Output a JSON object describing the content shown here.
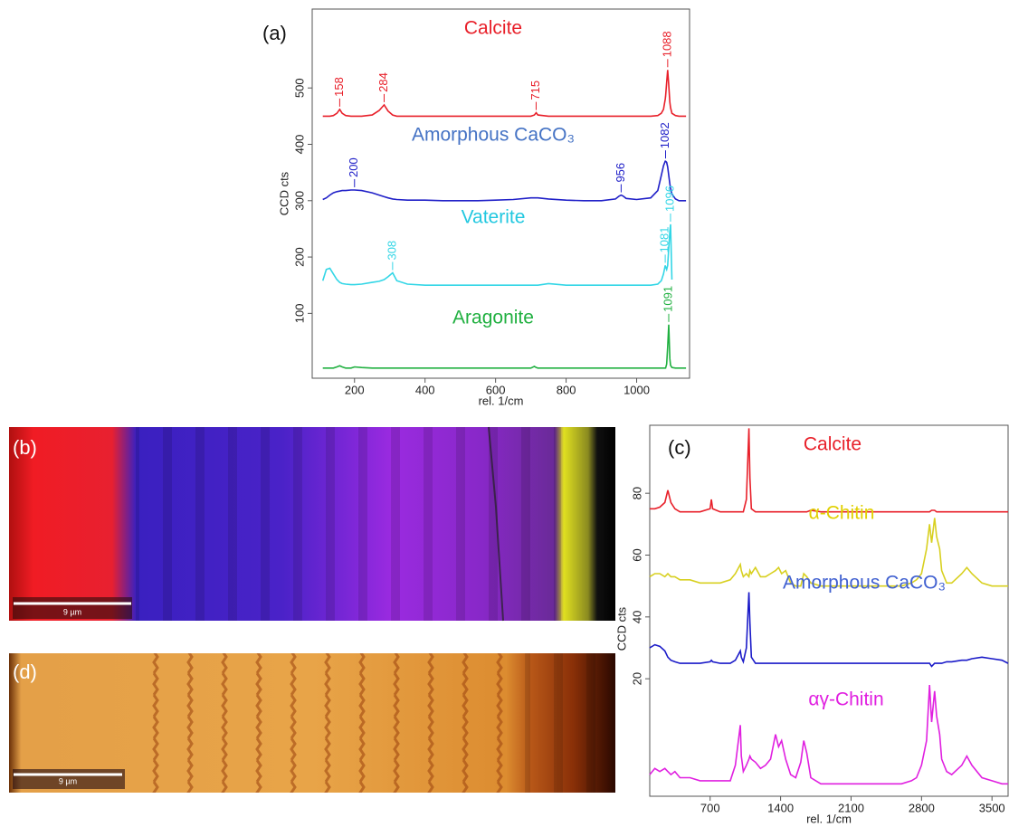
{
  "chart_data": [
    {
      "type": "line",
      "panel_label": "(a)",
      "x_label": "rel. 1/cm",
      "y_label": "CCD cts",
      "xlim": [
        80,
        1150
      ],
      "ylim": [
        -15,
        640
      ],
      "xticks": [
        200,
        400,
        600,
        800,
        1000
      ],
      "yticks": [
        100,
        200,
        300,
        400,
        500
      ],
      "x": [
        110,
        120,
        130,
        140,
        150,
        158,
        165,
        175,
        190,
        200,
        220,
        250,
        270,
        284,
        295,
        308,
        320,
        350,
        400,
        450,
        500,
        550,
        600,
        650,
        700,
        710,
        715,
        720,
        750,
        800,
        850,
        900,
        940,
        950,
        956,
        962,
        970,
        1000,
        1040,
        1060,
        1070,
        1076,
        1081,
        1082,
        1085,
        1088,
        1091,
        1094,
        1096,
        1100,
        1110,
        1120,
        1140
      ],
      "series": [
        {
          "name": "Calcite",
          "color": "#e8202a",
          "label_color": "#e8202a",
          "peaks": [
            158,
            284,
            715,
            1088
          ],
          "values": [
            450,
            450,
            450,
            451,
            455,
            462,
            455,
            451,
            450,
            450,
            450,
            452,
            460,
            470,
            459,
            452,
            450,
            450,
            450,
            450,
            450,
            450,
            450,
            450,
            450,
            452,
            456,
            452,
            450,
            450,
            450,
            450,
            450,
            450,
            450,
            450,
            450,
            450,
            450,
            451,
            455,
            462,
            480,
            485,
            510,
            532,
            505,
            475,
            465,
            455,
            451,
            450,
            450
          ]
        },
        {
          "name": "Amorphous CaCO₃",
          "color": "#2020c8",
          "label_color": "#4472c4",
          "peaks": [
            200,
            956,
            1082
          ],
          "values": [
            302,
            305,
            310,
            314,
            316,
            317,
            318,
            318,
            319,
            319,
            318,
            314,
            310,
            307,
            305,
            303,
            302,
            301,
            301,
            300,
            300,
            300,
            301,
            302,
            305,
            305,
            305,
            305,
            303,
            301,
            300,
            300,
            303,
            308,
            310,
            308,
            304,
            302,
            305,
            318,
            345,
            362,
            370,
            370,
            368,
            360,
            345,
            330,
            322,
            312,
            303,
            300,
            300
          ]
        },
        {
          "name": "Vaterite",
          "color": "#33d6e6",
          "label_color": "#22c8e0",
          "peaks": [
            308,
            1081,
            1096
          ],
          "values": [
            158,
            178,
            180,
            170,
            160,
            155,
            153,
            152,
            151,
            151,
            152,
            155,
            157,
            160,
            165,
            172,
            158,
            152,
            150,
            150,
            150,
            150,
            150,
            150,
            150,
            150,
            150,
            150,
            153,
            150,
            150,
            150,
            150,
            150,
            150,
            150,
            150,
            150,
            150,
            152,
            158,
            170,
            185,
            183,
            178,
            185,
            215,
            245,
            258,
            160,
            null,
            null,
            null
          ]
        },
        {
          "name": "Aragonite",
          "color": "#20b040",
          "label_color": "#20b040",
          "peaks": [
            1091
          ],
          "values": [
            3,
            3,
            3,
            3,
            5,
            7,
            5,
            3,
            3,
            5,
            4,
            3,
            3,
            3,
            3,
            3,
            3,
            3,
            3,
            3,
            3,
            3,
            3,
            3,
            3,
            6,
            4,
            3,
            3,
            3,
            3,
            3,
            3,
            3,
            3,
            3,
            3,
            3,
            3,
            3,
            3,
            3,
            3,
            3,
            10,
            40,
            80,
            20,
            8,
            4,
            3,
            3,
            3
          ]
        }
      ]
    },
    {
      "type": "line",
      "panel_label": "(c)",
      "x_label": "rel. 1/cm",
      "y_label": "CCD cts",
      "xlim": [
        100,
        3660
      ],
      "ylim": [
        -18,
        102
      ],
      "xticks": [
        700,
        1400,
        2100,
        2800,
        3500
      ],
      "yticks": [
        20,
        40,
        60,
        80
      ],
      "x": [
        100,
        150,
        200,
        250,
        280,
        310,
        350,
        400,
        500,
        600,
        700,
        712,
        725,
        800,
        900,
        950,
        1000,
        1010,
        1030,
        1060,
        1085,
        1095,
        1110,
        1150,
        1200,
        1250,
        1300,
        1350,
        1380,
        1410,
        1450,
        1500,
        1550,
        1600,
        1630,
        1660,
        1700,
        1800,
        2000,
        2200,
        2400,
        2600,
        2700,
        2750,
        2800,
        2850,
        2880,
        2900,
        2930,
        2950,
        2980,
        3000,
        3050,
        3100,
        3200,
        3250,
        3300,
        3400,
        3500,
        3600,
        3660
      ],
      "series": [
        {
          "name": "Calcite",
          "color": "#e8202a",
          "label_color": "#e8202a",
          "values": [
            75,
            75,
            75.5,
            77,
            81,
            77,
            75,
            74,
            74,
            74,
            75,
            78,
            75,
            74,
            74,
            74,
            74,
            74,
            74,
            78,
            101,
            85,
            75,
            74,
            74,
            74,
            74,
            74,
            74,
            74,
            74,
            74,
            74,
            74,
            74,
            74,
            74.5,
            74,
            74,
            74,
            74,
            74,
            74,
            74,
            74,
            74,
            74,
            74.5,
            74.5,
            74,
            74,
            74,
            74,
            74,
            74,
            74,
            74,
            74,
            74,
            74,
            74
          ]
        },
        {
          "name": "α-Chitin",
          "color": "#d8d020",
          "label_color": "#e0d000",
          "values": [
            53,
            54,
            54,
            53,
            54,
            53,
            53,
            52,
            52,
            51,
            51,
            51,
            51,
            51,
            52,
            54,
            57,
            55,
            53,
            54,
            53,
            55,
            54,
            56,
            53,
            53,
            54,
            55,
            56,
            54,
            55,
            51,
            50,
            50,
            54,
            53,
            51,
            50,
            50,
            50,
            50,
            50,
            51,
            52,
            54,
            62,
            70,
            64,
            72,
            66,
            62,
            55,
            51,
            51,
            54,
            56,
            54,
            51,
            50,
            50,
            50
          ]
        },
        {
          "name": "Amorphous CaCO₃",
          "color": "#1a1ac8",
          "label_color": "#4060d0",
          "values": [
            30,
            31,
            30.5,
            29,
            27,
            26,
            25.5,
            25,
            25,
            25,
            25.5,
            26,
            25.5,
            25,
            25,
            26,
            29,
            27,
            25.5,
            30,
            48,
            38,
            27,
            25,
            25,
            25,
            25,
            25,
            25,
            25,
            25,
            25,
            25,
            25,
            25,
            25,
            25,
            25,
            25,
            25,
            25,
            25,
            25,
            25,
            25,
            25,
            25,
            24,
            25,
            25,
            25,
            25,
            25.5,
            25.5,
            26,
            26,
            26.5,
            27,
            26.5,
            26,
            25
          ]
        },
        {
          "name": "αγ-Chitin",
          "color": "#e020e0",
          "label_color": "#e020e0",
          "values": [
            -11,
            -9,
            -10,
            -9,
            -10,
            -11,
            -10,
            -12,
            -12,
            -13,
            -13,
            -13,
            -13,
            -13,
            -13,
            -8,
            5,
            -5,
            -10,
            -8,
            -6,
            -5,
            -6,
            -7,
            -9,
            -8,
            -6,
            2,
            -2,
            0,
            -6,
            -11,
            -12,
            -7,
            0,
            -4,
            -12,
            -14,
            -14,
            -14,
            -14,
            -14,
            -13,
            -12,
            -8,
            0,
            18,
            6,
            16,
            8,
            2,
            -6,
            -10,
            -11,
            -8,
            -5,
            -8,
            -12,
            -13,
            -14,
            -14
          ]
        }
      ]
    }
  ],
  "images": [
    {
      "label": "(b)",
      "scale_bar": "9 µm"
    },
    {
      "label": "(d)",
      "scale_bar": "9 µm"
    }
  ]
}
